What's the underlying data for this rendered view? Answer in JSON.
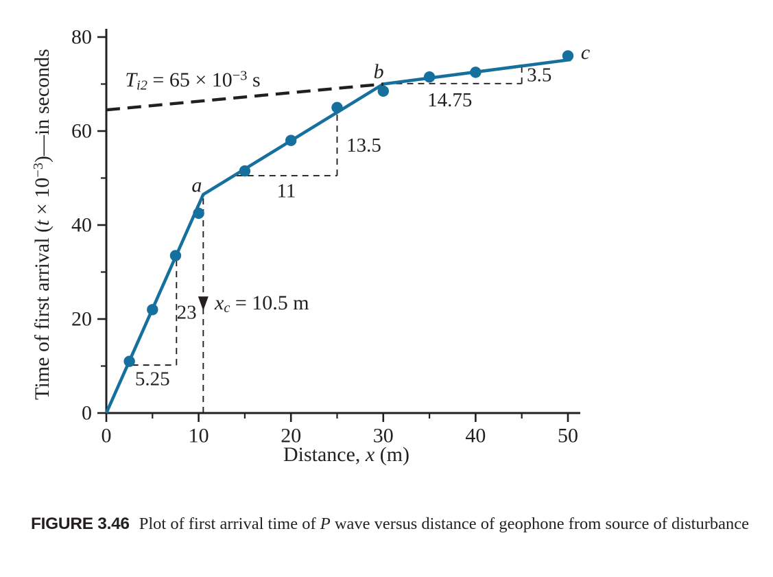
{
  "colors": {
    "line": "#15709e",
    "ink": "#231f20",
    "background": "#ffffff"
  },
  "labels": {
    "y_axis": {
      "p1": "Time of first arrival (",
      "var": "t",
      "p2": " × 10",
      "sup": "−3",
      "p3": ")—in seconds"
    },
    "x_axis": {
      "p1": "Distance, ",
      "var": "x",
      "p2": " (m)"
    },
    "ti2": {
      "var": "T",
      "sub": "i2",
      "p1": " = 65 × 10",
      "sup": "−3",
      "p2": " s"
    },
    "xc": {
      "var": "x",
      "sub": "c",
      "p1": " = 10.5 m"
    }
  },
  "caption": {
    "label": "FIGURE 3.46",
    "p1": "Plot of first arrival time of ",
    "var": "P",
    "p2": " wave versus distance of geophone from source of disturbance"
  },
  "chart_data": {
    "type": "line",
    "title": "",
    "xlabel": "Distance, x (m)",
    "ylabel": "Time of first arrival (t × 10⁻³)—in seconds",
    "xlim": [
      0,
      50
    ],
    "ylim": [
      0,
      80
    ],
    "grid": false,
    "x_major_ticks": [
      0,
      10,
      20,
      30,
      40,
      50
    ],
    "x_minor_ticks": [
      5,
      15,
      25,
      35,
      45
    ],
    "y_major_ticks": [
      0,
      20,
      40,
      60,
      80
    ],
    "y_minor_ticks": [
      10,
      30,
      50,
      70
    ],
    "series": [
      {
        "name": "first-arrival-data-points",
        "type": "scatter",
        "points": [
          [
            2.5,
            11
          ],
          [
            5,
            22
          ],
          [
            7.5,
            33.5
          ],
          [
            10,
            42.5
          ],
          [
            15,
            51.5
          ],
          [
            20,
            58
          ],
          [
            25,
            65
          ],
          [
            30,
            68.5
          ],
          [
            35,
            71.5
          ],
          [
            40,
            72.5
          ],
          [
            50,
            76
          ]
        ]
      },
      {
        "name": "fitted-segments-line",
        "type": "line",
        "points": [
          [
            0,
            0
          ],
          [
            10.5,
            46.5
          ],
          [
            30,
            70
          ],
          [
            50.3,
            75.2
          ]
        ]
      },
      {
        "name": "ti2-intercept-dashed-line",
        "type": "dashed-line",
        "points": [
          [
            0,
            64.5
          ],
          [
            30,
            70
          ]
        ]
      }
    ],
    "kink_points": {
      "a": [
        10.5,
        46.5
      ],
      "b": [
        30,
        70
      ],
      "c": [
        50,
        76
      ]
    },
    "point_labels": [
      {
        "text": "a",
        "at": [
          9.8,
          48.5
        ]
      },
      {
        "text": "b",
        "at": [
          29.5,
          72.6
        ]
      },
      {
        "text": "c",
        "at": [
          51.9,
          76.7
        ]
      }
    ],
    "slope_triangles": [
      {
        "run": {
          "from": [
            2.8,
            10.2
          ],
          "to": [
            7.6,
            10.2
          ],
          "label": "5.25",
          "label_at": [
            5.0,
            7.2
          ]
        },
        "rise": {
          "from": [
            7.6,
            10.2
          ],
          "to": [
            7.6,
            33.5
          ],
          "label": "23",
          "label_at": [
            8.7,
            21.4
          ]
        }
      },
      {
        "run": {
          "from": [
            14.1,
            50.5
          ],
          "to": [
            25,
            50.5
          ],
          "label": "11",
          "label_at": [
            19.5,
            47.2
          ]
        },
        "rise": {
          "from": [
            25,
            50.5
          ],
          "to": [
            25,
            63.9
          ],
          "label": "13.5",
          "label_at": [
            27.9,
            56.9
          ]
        }
      },
      {
        "run": {
          "from": [
            30.2,
            70.1
          ],
          "to": [
            45,
            70.1
          ],
          "label": "14.75",
          "label_at": [
            37.2,
            66.6
          ]
        },
        "rise": {
          "from": [
            45,
            70.1
          ],
          "to": [
            45,
            73.8
          ],
          "label": "3.5",
          "label_at": [
            46.9,
            71.9
          ]
        }
      }
    ],
    "xc_marker": {
      "x": 10.5,
      "line_top_y": 46.3,
      "arrow_top_y": 24.8,
      "arrow_tip_y": 21.8,
      "value": "10.5 m"
    },
    "annotations_values": {
      "ti2_intercept": "65 × 10⁻³ s",
      "crossover_distance_xc": "10.5 m"
    }
  }
}
